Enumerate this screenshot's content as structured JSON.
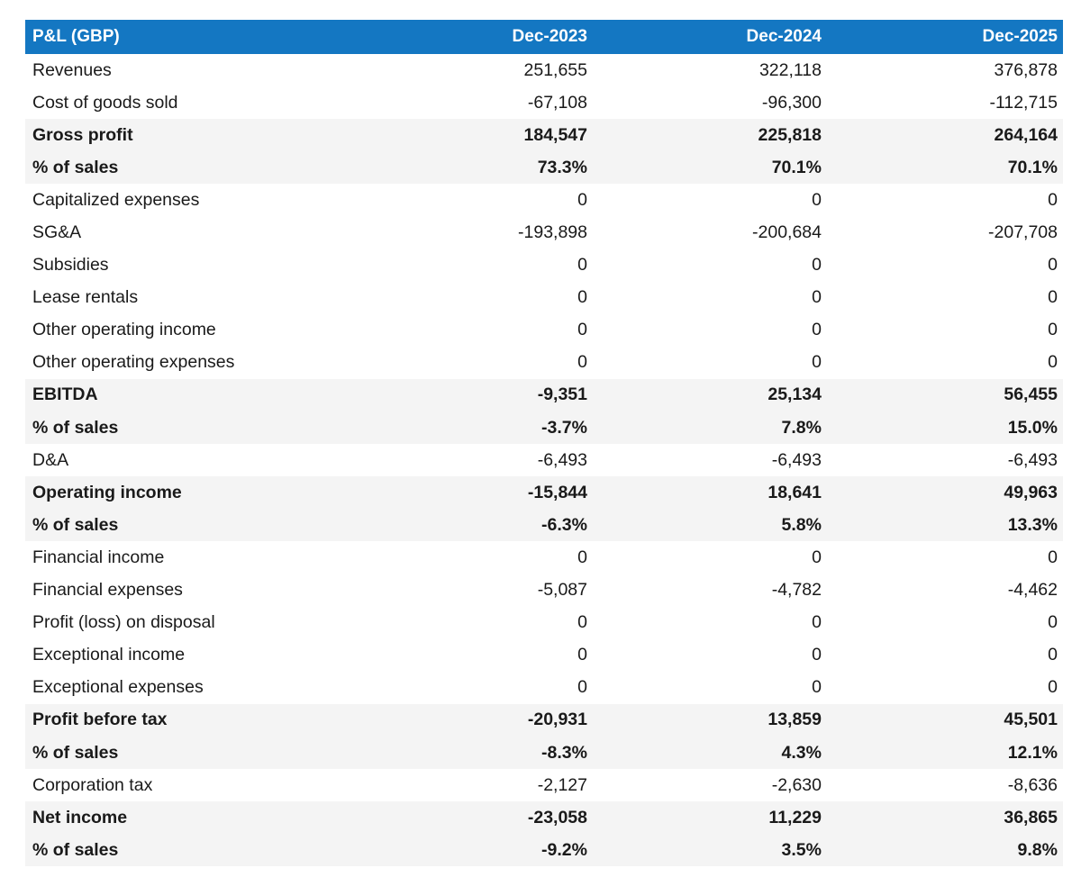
{
  "header": {
    "label": "P&L (GBP)",
    "columns": [
      "Dec-2023",
      "Dec-2024",
      "Dec-2025"
    ]
  },
  "colors": {
    "header_bg": "#1477c2",
    "header_text": "#ffffff",
    "shade_row": "#f4f4f4"
  },
  "rows": [
    {
      "label": "Revenues",
      "values": [
        "251,655",
        "322,118",
        "376,878"
      ],
      "bold": false,
      "shade": false
    },
    {
      "label": "Cost of goods sold",
      "values": [
        "-67,108",
        "-96,300",
        "-112,715"
      ],
      "bold": false,
      "shade": false
    },
    {
      "label": "Gross profit",
      "values": [
        "184,547",
        "225,818",
        "264,164"
      ],
      "bold": true,
      "shade": true
    },
    {
      "label": "% of sales",
      "values": [
        "73.3%",
        "70.1%",
        "70.1%"
      ],
      "bold": true,
      "shade": true
    },
    {
      "label": "Capitalized expenses",
      "values": [
        "0",
        "0",
        "0"
      ],
      "bold": false,
      "shade": false
    },
    {
      "label": "SG&A",
      "values": [
        "-193,898",
        "-200,684",
        "-207,708"
      ],
      "bold": false,
      "shade": false
    },
    {
      "label": "Subsidies",
      "values": [
        "0",
        "0",
        "0"
      ],
      "bold": false,
      "shade": false
    },
    {
      "label": "Lease rentals",
      "values": [
        "0",
        "0",
        "0"
      ],
      "bold": false,
      "shade": false
    },
    {
      "label": "Other operating income",
      "values": [
        "0",
        "0",
        "0"
      ],
      "bold": false,
      "shade": false
    },
    {
      "label": "Other operating expenses",
      "values": [
        "0",
        "0",
        "0"
      ],
      "bold": false,
      "shade": false
    },
    {
      "label": "EBITDA",
      "values": [
        "-9,351",
        "25,134",
        "56,455"
      ],
      "bold": true,
      "shade": true
    },
    {
      "label": "% of sales",
      "values": [
        "-3.7%",
        "7.8%",
        "15.0%"
      ],
      "bold": true,
      "shade": true
    },
    {
      "label": "D&A",
      "values": [
        "-6,493",
        "-6,493",
        "-6,493"
      ],
      "bold": false,
      "shade": false
    },
    {
      "label": "Operating income",
      "values": [
        "-15,844",
        "18,641",
        "49,963"
      ],
      "bold": true,
      "shade": true
    },
    {
      "label": "% of sales",
      "values": [
        "-6.3%",
        "5.8%",
        "13.3%"
      ],
      "bold": true,
      "shade": true
    },
    {
      "label": "Financial income",
      "values": [
        "0",
        "0",
        "0"
      ],
      "bold": false,
      "shade": false
    },
    {
      "label": "Financial expenses",
      "values": [
        "-5,087",
        "-4,782",
        "-4,462"
      ],
      "bold": false,
      "shade": false
    },
    {
      "label": "Profit (loss) on disposal",
      "values": [
        "0",
        "0",
        "0"
      ],
      "bold": false,
      "shade": false
    },
    {
      "label": "Exceptional income",
      "values": [
        "0",
        "0",
        "0"
      ],
      "bold": false,
      "shade": false
    },
    {
      "label": "Exceptional expenses",
      "values": [
        "0",
        "0",
        "0"
      ],
      "bold": false,
      "shade": false
    },
    {
      "label": "Profit before tax",
      "values": [
        "-20,931",
        "13,859",
        "45,501"
      ],
      "bold": true,
      "shade": true
    },
    {
      "label": "% of sales",
      "values": [
        "-8.3%",
        "4.3%",
        "12.1%"
      ],
      "bold": true,
      "shade": true
    },
    {
      "label": "Corporation tax",
      "values": [
        "-2,127",
        "-2,630",
        "-8,636"
      ],
      "bold": false,
      "shade": false
    },
    {
      "label": "Net income",
      "values": [
        "-23,058",
        "11,229",
        "36,865"
      ],
      "bold": true,
      "shade": true
    },
    {
      "label": "% of sales",
      "values": [
        "-9.2%",
        "3.5%",
        "9.8%"
      ],
      "bold": true,
      "shade": true
    }
  ]
}
